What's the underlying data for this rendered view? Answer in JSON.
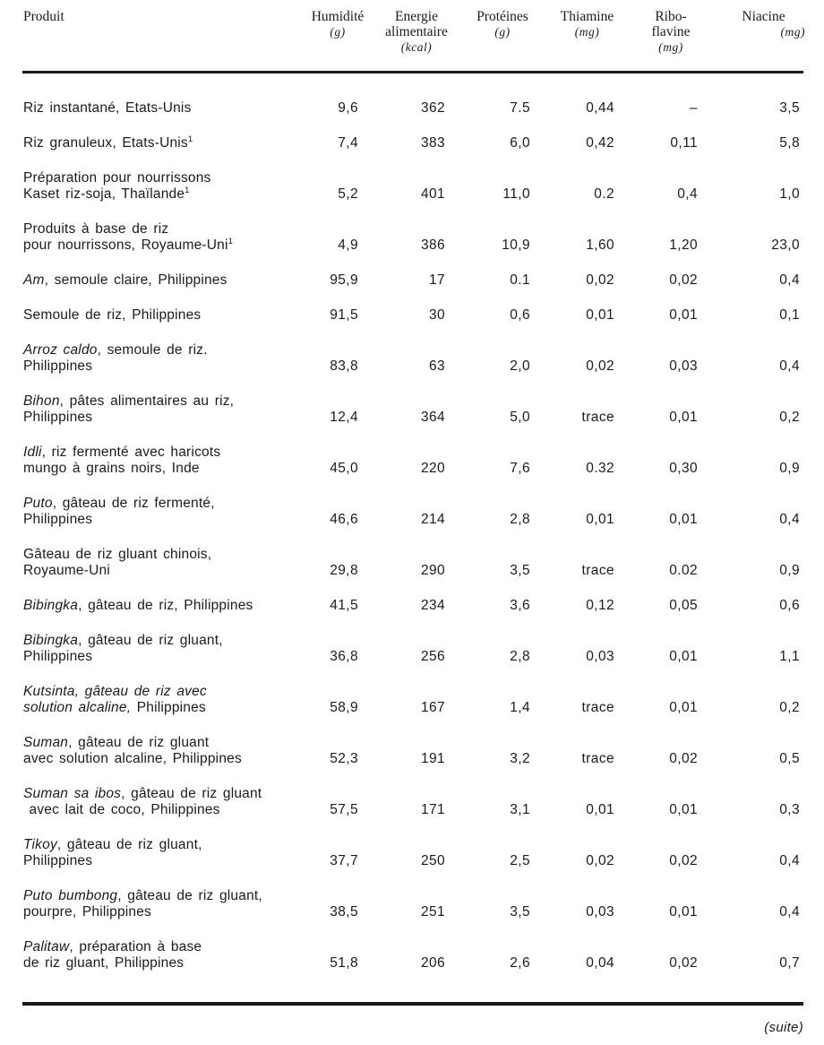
{
  "document": {
    "continuation_note": "(suite)"
  },
  "table": {
    "product_header": "Produit",
    "columns": [
      {
        "lines": [
          "Humidité"
        ],
        "unit": "(g)"
      },
      {
        "lines": [
          "Energie",
          "alimentaire"
        ],
        "unit": "(kcal)"
      },
      {
        "lines": [
          "Protéines"
        ],
        "unit": "(g)"
      },
      {
        "lines": [
          "Thiamine"
        ],
        "unit": "(mg)"
      },
      {
        "lines": [
          "Ribo-",
          "flavine"
        ],
        "unit": "(mg)"
      },
      {
        "lines": [
          "Niacine"
        ],
        "unit": "(mg)"
      }
    ],
    "rows": [
      {
        "product": [
          [
            {
              "t": "Riz instantané, Etats-Unis"
            }
          ]
        ],
        "values": [
          "9,6",
          "362",
          "7.5",
          "0,44",
          "–",
          "3,5"
        ]
      },
      {
        "product": [
          [
            {
              "t": "Riz granuleux, Etats-Unis"
            },
            {
              "t": "1",
              "sup": true
            }
          ]
        ],
        "values": [
          "7,4",
          "383",
          "6,0",
          "0,42",
          "0,11",
          "5,8"
        ]
      },
      {
        "product": [
          [
            {
              "t": "Préparation pour nourrissons"
            }
          ],
          [
            {
              "t": "Kaset riz-soja, Thaïlande"
            },
            {
              "t": "1",
              "sup": true
            }
          ]
        ],
        "values": [
          "5,2",
          "401",
          "11,0",
          "0.2",
          "0,4",
          "1,0"
        ]
      },
      {
        "product": [
          [
            {
              "t": "Produits à base de riz"
            }
          ],
          [
            {
              "t": "pour nourrissons, Royaume-Uni"
            },
            {
              "t": "1",
              "sup": true
            }
          ]
        ],
        "values": [
          "4,9",
          "386",
          "10,9",
          "1,60",
          "1,20",
          "23,0"
        ]
      },
      {
        "product": [
          [
            {
              "t": "Am",
              "i": true
            },
            {
              "t": ", semoule claire, Philippines"
            }
          ]
        ],
        "values": [
          "95,9",
          "17",
          "0.1",
          "0,02",
          "0,02",
          "0,4"
        ]
      },
      {
        "product": [
          [
            {
              "t": "Semoule de riz, Philippines"
            }
          ]
        ],
        "values": [
          "91,5",
          "30",
          "0,6",
          "0,01",
          "0,01",
          "0,1"
        ]
      },
      {
        "product": [
          [
            {
              "t": "Arroz caldo",
              "i": true
            },
            {
              "t": ", semoule de riz."
            }
          ],
          [
            {
              "t": "Philippines"
            }
          ]
        ],
        "values": [
          "83,8",
          "63",
          "2,0",
          "0,02",
          "0,03",
          "0,4"
        ]
      },
      {
        "product": [
          [
            {
              "t": "Bihon",
              "i": true
            },
            {
              "t": ", pâtes alimentaires au riz,"
            }
          ],
          [
            {
              "t": "Philippines"
            }
          ]
        ],
        "values": [
          "12,4",
          "364",
          "5,0",
          "trace",
          "0,01",
          "0,2"
        ]
      },
      {
        "product": [
          [
            {
              "t": "Idli",
              "i": true
            },
            {
              "t": ", riz fermenté avec haricots"
            }
          ],
          [
            {
              "t": "mungo à grains noirs, Inde"
            }
          ]
        ],
        "values": [
          "45,0",
          "220",
          "7,6",
          "0.32",
          "0,30",
          "0,9"
        ]
      },
      {
        "product": [
          [
            {
              "t": "Puto",
              "i": true
            },
            {
              "t": ", gâteau de riz fermenté,"
            }
          ],
          [
            {
              "t": "Philippines"
            }
          ]
        ],
        "values": [
          "46,6",
          "214",
          "2,8",
          "0,01",
          "0,01",
          "0,4"
        ]
      },
      {
        "product": [
          [
            {
              "t": "Gâteau de riz gluant chinois,"
            }
          ],
          [
            {
              "t": "Royaume-Uni"
            }
          ]
        ],
        "values": [
          "29,8",
          "290",
          "3,5",
          "trace",
          "0.02",
          "0,9"
        ]
      },
      {
        "product": [
          [
            {
              "t": "Bibingka",
              "i": true
            },
            {
              "t": ", gâteau de riz, Philippines"
            }
          ]
        ],
        "values": [
          "41,5",
          "234",
          "3,6",
          "0,12",
          "0,05",
          "0,6"
        ]
      },
      {
        "product": [
          [
            {
              "t": "Bibingka",
              "i": true
            },
            {
              "t": ", gâteau de riz gluant,"
            }
          ],
          [
            {
              "t": "Philippines"
            }
          ]
        ],
        "values": [
          "36,8",
          "256",
          "2,8",
          "0,03",
          "0,01",
          "1,1"
        ]
      },
      {
        "product": [
          [
            {
              "t": "Kutsinta, gâteau de riz avec",
              "i": true
            }
          ],
          [
            {
              "t": "solution alcaline,",
              "i": true
            },
            {
              "t": " Philippines"
            }
          ]
        ],
        "values": [
          "58,9",
          "167",
          "1,4",
          "trace",
          "0,01",
          "0,2"
        ]
      },
      {
        "product": [
          [
            {
              "t": "Suman",
              "i": true
            },
            {
              "t": ", gâteau de riz gluant"
            }
          ],
          [
            {
              "t": "avec solution alcaline, Philippines"
            }
          ]
        ],
        "values": [
          "52,3",
          "191",
          "3,2",
          "trace",
          "0,02",
          "0,5"
        ]
      },
      {
        "product": [
          [
            {
              "t": "Suman sa ibos",
              "i": true
            },
            {
              "t": ", gâteau de riz gluant"
            }
          ],
          [
            {
              "t": " avec lait de coco, Philippines"
            }
          ]
        ],
        "values": [
          "57,5",
          "171",
          "3,1",
          "0,01",
          "0,01",
          "0,3"
        ]
      },
      {
        "product": [
          [
            {
              "t": "Tikoy",
              "i": true
            },
            {
              "t": ", gâteau de riz gluant,"
            }
          ],
          [
            {
              "t": "Philippines"
            }
          ]
        ],
        "values": [
          "37,7",
          "250",
          "2,5",
          "0,02",
          "0,02",
          "0,4"
        ]
      },
      {
        "product": [
          [
            {
              "t": "Puto bumbong",
              "i": true
            },
            {
              "t": ", gâteau de riz gluant,"
            }
          ],
          [
            {
              "t": "pourpre, Philippines"
            }
          ]
        ],
        "values": [
          "38,5",
          "251",
          "3,5",
          "0,03",
          "0,01",
          "0,4"
        ]
      },
      {
        "product": [
          [
            {
              "t": "Palitaw",
              "i": true
            },
            {
              "t": ", préparation à base"
            }
          ],
          [
            {
              "t": "de riz gluant, Philippines"
            }
          ]
        ],
        "values": [
          "51,8",
          "206",
          "2,6",
          "0,04",
          "0,02",
          "0,7"
        ]
      }
    ]
  }
}
